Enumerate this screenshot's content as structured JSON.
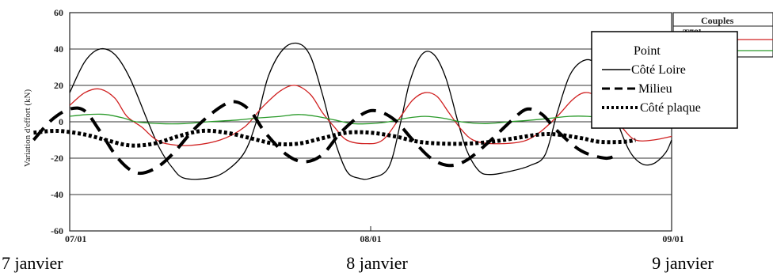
{
  "chart_data": {
    "type": "line",
    "ylabel": "Variation d'effort (kN)",
    "ylim": [
      -60,
      60
    ],
    "yticks": [
      -60,
      -40,
      -20,
      0,
      20,
      40,
      60
    ],
    "xlim": [
      0,
      2
    ],
    "xticks": [
      {
        "x": 0,
        "label": "07/01"
      },
      {
        "x": 1,
        "label": "08/01"
      },
      {
        "x": 2,
        "label": "09/01"
      }
    ],
    "date_labels": [
      "7 janvier",
      "8 janvier",
      "9 janvier"
    ],
    "grid": true,
    "colors": {
      "black": "#000000",
      "red": "#d02020",
      "green": "#2a9a2a"
    },
    "side_legend": {
      "title": "Couples",
      "entry": "T78l"
    },
    "legend": {
      "title": "Point",
      "placement": "top-right",
      "entries": [
        "Côté Loire",
        "Milieu",
        "Côté plaque"
      ]
    },
    "series": [
      {
        "name": "Côté Loire",
        "style": "solid-thin",
        "color": "#000000",
        "points": [
          [
            0,
            16
          ],
          [
            0.05,
            33
          ],
          [
            0.1,
            40
          ],
          [
            0.15,
            37
          ],
          [
            0.2,
            24
          ],
          [
            0.26,
            0
          ],
          [
            0.3,
            -15
          ],
          [
            0.34,
            -25
          ],
          [
            0.38,
            -31
          ],
          [
            0.46,
            -31
          ],
          [
            0.52,
            -27
          ],
          [
            0.58,
            -17
          ],
          [
            0.62,
            0
          ],
          [
            0.66,
            25
          ],
          [
            0.71,
            40
          ],
          [
            0.76,
            43
          ],
          [
            0.8,
            36
          ],
          [
            0.84,
            15
          ],
          [
            0.88,
            -10
          ],
          [
            0.92,
            -27
          ],
          [
            0.96,
            -31
          ],
          [
            1.0,
            -31
          ],
          [
            1.06,
            -25
          ],
          [
            1.1,
            0
          ],
          [
            1.13,
            22
          ],
          [
            1.17,
            37
          ],
          [
            1.21,
            37
          ],
          [
            1.25,
            24
          ],
          [
            1.29,
            0
          ],
          [
            1.32,
            -16
          ],
          [
            1.36,
            -27
          ],
          [
            1.4,
            -29
          ],
          [
            1.47,
            -27
          ],
          [
            1.53,
            -24
          ],
          [
            1.58,
            -18
          ],
          [
            1.62,
            5
          ],
          [
            1.66,
            25
          ],
          [
            1.7,
            33
          ],
          [
            1.74,
            33
          ],
          [
            1.78,
            22
          ],
          [
            1.82,
            0
          ],
          [
            1.86,
            -16
          ],
          [
            1.9,
            -23
          ],
          [
            1.94,
            -23
          ],
          [
            1.98,
            -17
          ],
          [
            2.0,
            -10
          ]
        ]
      },
      {
        "name": "",
        "style": "solid-thin",
        "color": "#d02020",
        "points": [
          [
            0,
            9
          ],
          [
            0.05,
            16
          ],
          [
            0.1,
            18
          ],
          [
            0.15,
            13
          ],
          [
            0.19,
            3
          ],
          [
            0.24,
            -3
          ],
          [
            0.28,
            -9
          ],
          [
            0.32,
            -12
          ],
          [
            0.4,
            -13
          ],
          [
            0.5,
            -10
          ],
          [
            0.58,
            -3
          ],
          [
            0.64,
            8
          ],
          [
            0.7,
            17
          ],
          [
            0.75,
            20
          ],
          [
            0.8,
            15
          ],
          [
            0.84,
            5
          ],
          [
            0.88,
            -3
          ],
          [
            0.92,
            -10
          ],
          [
            0.98,
            -12
          ],
          [
            1.04,
            -10
          ],
          [
            1.1,
            3
          ],
          [
            1.14,
            12
          ],
          [
            1.18,
            16
          ],
          [
            1.22,
            14
          ],
          [
            1.26,
            5
          ],
          [
            1.3,
            -4
          ],
          [
            1.34,
            -10
          ],
          [
            1.4,
            -12
          ],
          [
            1.5,
            -11
          ],
          [
            1.56,
            -6
          ],
          [
            1.62,
            3
          ],
          [
            1.67,
            12
          ],
          [
            1.71,
            16
          ],
          [
            1.75,
            14
          ],
          [
            1.8,
            5
          ],
          [
            1.84,
            -4
          ],
          [
            1.88,
            -10
          ],
          [
            1.94,
            -10
          ],
          [
            2.0,
            -8
          ]
        ]
      },
      {
        "name": "",
        "style": "solid-thin",
        "color": "#2a9a2a",
        "points": [
          [
            0,
            3
          ],
          [
            0.06,
            4
          ],
          [
            0.12,
            4
          ],
          [
            0.18,
            2
          ],
          [
            0.22,
            0
          ],
          [
            0.3,
            -1
          ],
          [
            0.38,
            -1
          ],
          [
            0.46,
            0
          ],
          [
            0.56,
            1
          ],
          [
            0.62,
            2
          ],
          [
            0.7,
            3
          ],
          [
            0.76,
            4
          ],
          [
            0.82,
            3
          ],
          [
            0.88,
            1
          ],
          [
            0.94,
            -1
          ],
          [
            1.0,
            -1
          ],
          [
            1.06,
            0
          ],
          [
            1.12,
            2
          ],
          [
            1.18,
            3
          ],
          [
            1.24,
            2
          ],
          [
            1.3,
            0
          ],
          [
            1.38,
            -1
          ],
          [
            1.46,
            0
          ],
          [
            1.54,
            1
          ],
          [
            1.6,
            2
          ],
          [
            1.66,
            3
          ],
          [
            1.72,
            3
          ],
          [
            1.78,
            2
          ],
          [
            1.84,
            0
          ],
          [
            1.92,
            -1
          ],
          [
            2.0,
            0
          ]
        ]
      },
      {
        "name": "Milieu",
        "style": "dashed-thick",
        "color": "#000000",
        "points": [
          [
            -0.12,
            -10
          ],
          [
            -0.06,
            1
          ],
          [
            0,
            7
          ],
          [
            0.05,
            6
          ],
          [
            0.1,
            -5
          ],
          [
            0.16,
            -20
          ],
          [
            0.22,
            -28
          ],
          [
            0.28,
            -26
          ],
          [
            0.34,
            -18
          ],
          [
            0.42,
            -3
          ],
          [
            0.5,
            8
          ],
          [
            0.55,
            11
          ],
          [
            0.6,
            6
          ],
          [
            0.65,
            -6
          ],
          [
            0.72,
            -18
          ],
          [
            0.78,
            -22
          ],
          [
            0.84,
            -18
          ],
          [
            0.9,
            -6
          ],
          [
            0.97,
            4
          ],
          [
            1.02,
            6
          ],
          [
            1.08,
            1
          ],
          [
            1.14,
            -10
          ],
          [
            1.2,
            -20
          ],
          [
            1.26,
            -24
          ],
          [
            1.32,
            -21
          ],
          [
            1.4,
            -10
          ],
          [
            1.47,
            1
          ],
          [
            1.52,
            7
          ],
          [
            1.57,
            4
          ],
          [
            1.62,
            -5
          ],
          [
            1.7,
            -16
          ],
          [
            1.78,
            -20
          ],
          [
            1.82,
            -18
          ]
        ]
      },
      {
        "name": "Côté plaque",
        "style": "dotted-thick",
        "color": "#000000",
        "points": [
          [
            -0.12,
            -6
          ],
          [
            -0.04,
            -5
          ],
          [
            0.05,
            -7
          ],
          [
            0.12,
            -10
          ],
          [
            0.2,
            -13
          ],
          [
            0.28,
            -12
          ],
          [
            0.36,
            -8
          ],
          [
            0.44,
            -5
          ],
          [
            0.52,
            -6
          ],
          [
            0.6,
            -9
          ],
          [
            0.68,
            -12
          ],
          [
            0.76,
            -12
          ],
          [
            0.84,
            -9
          ],
          [
            0.92,
            -6
          ],
          [
            1.0,
            -6
          ],
          [
            1.08,
            -8
          ],
          [
            1.16,
            -11
          ],
          [
            1.24,
            -12
          ],
          [
            1.32,
            -12
          ],
          [
            1.4,
            -11
          ],
          [
            1.48,
            -9
          ],
          [
            1.56,
            -7
          ],
          [
            1.62,
            -7
          ],
          [
            1.7,
            -9
          ],
          [
            1.76,
            -11
          ],
          [
            1.84,
            -11
          ],
          [
            1.88,
            -10
          ]
        ]
      }
    ]
  }
}
